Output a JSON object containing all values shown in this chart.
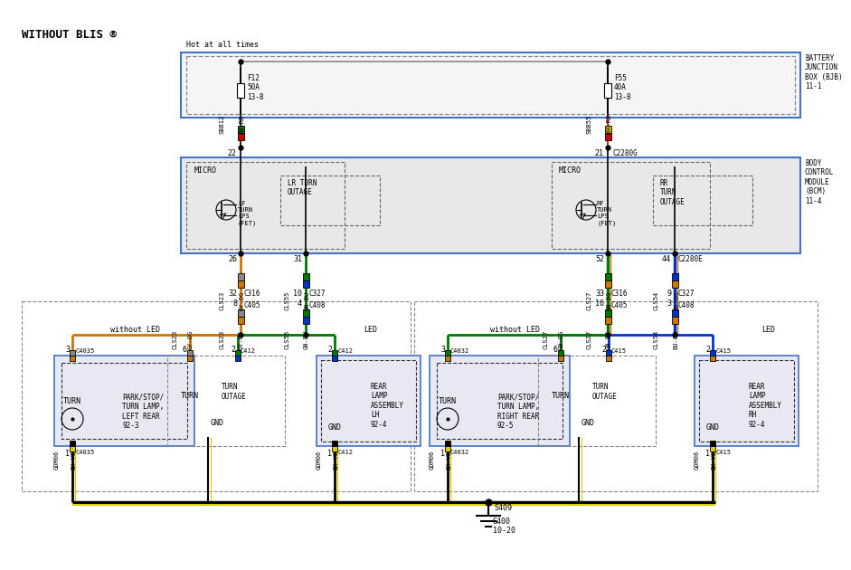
{
  "title": "WITHOUT BLIS ®",
  "bg_color": "#ffffff",
  "bjb_label": "BATTERY\nJUNCTION\nBOX (BJB)\n11-1",
  "bcm_label": "BODY\nCONTROL\nMODULE\n(BCM)\n11-4",
  "hot_label": "Hot at all times",
  "colors": {
    "black": "#000000",
    "orange": "#CC7700",
    "green": "#007700",
    "yellow": "#DDCC00",
    "red": "#CC0000",
    "blue": "#0033CC",
    "gray": "#888888",
    "dark_green": "#004400",
    "blue_border": "#4472C4",
    "box_fill": "#f0f0f0",
    "bcm_fill": "#e8e8e8"
  }
}
